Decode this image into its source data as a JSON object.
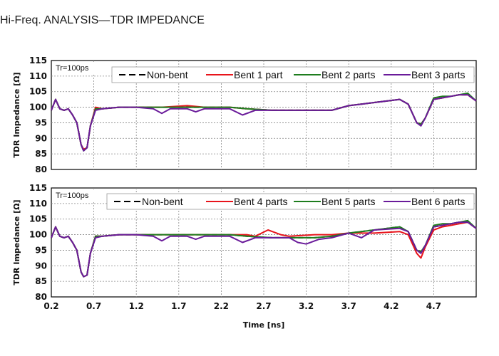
{
  "page": {
    "title": "Hi-Freq. ANALYSIS—TDR IMPEDANCE"
  },
  "chart_data": [
    {
      "type": "line",
      "condition_label": "Tr=100ps",
      "ylabel": "TDR Impedance [Ω]",
      "xlabel": "",
      "ylim": [
        80,
        115
      ],
      "yticks": [
        80,
        85,
        90,
        95,
        100,
        105,
        110,
        115
      ],
      "xlim": [
        0.2,
        5.2
      ],
      "xticks": [
        0.2,
        0.7,
        1.2,
        1.7,
        2.2,
        2.7,
        3.2,
        3.7,
        4.2,
        4.7
      ],
      "grid": true,
      "legend": "top",
      "series": [
        {
          "name": "Non-bent",
          "color": "#000000",
          "dash": true,
          "x": [
            0.2,
            0.25,
            0.3,
            0.35,
            0.4,
            0.45,
            0.5,
            0.55,
            0.58,
            0.62,
            0.66,
            0.72,
            0.8,
            1.0,
            1.2,
            1.5,
            1.8,
            2.0,
            2.3,
            2.5,
            2.8,
            3.0,
            3.3,
            3.5,
            3.7,
            4.0,
            4.3,
            4.4,
            4.5,
            4.55,
            4.6,
            4.7,
            4.8,
            4.9,
            5.0,
            5.1,
            5.2
          ],
          "y": [
            99,
            102.5,
            99.5,
            99,
            99.5,
            97.5,
            95,
            88,
            86,
            87,
            94,
            99.5,
            99.5,
            100,
            100,
            100,
            100,
            100,
            100,
            99.5,
            99,
            99,
            99,
            99,
            100.5,
            101.5,
            102.5,
            101,
            95,
            94.5,
            96.5,
            102.5,
            103,
            103.5,
            104,
            104,
            102
          ]
        },
        {
          "name": "Bent 1 part",
          "color": "#e8141b",
          "dash": false,
          "x": [
            0.2,
            0.25,
            0.3,
            0.35,
            0.4,
            0.45,
            0.5,
            0.55,
            0.58,
            0.62,
            0.66,
            0.72,
            0.8,
            1.0,
            1.2,
            1.5,
            1.8,
            2.0,
            2.3,
            2.5,
            2.8,
            3.0,
            3.3,
            3.5,
            3.7,
            4.0,
            4.3,
            4.4,
            4.5,
            4.55,
            4.6,
            4.7,
            4.8,
            4.9,
            5.0,
            5.1,
            5.2
          ],
          "y": [
            99,
            102.5,
            99.5,
            99,
            99.5,
            97.5,
            95,
            88,
            86.5,
            87,
            94,
            100,
            99.5,
            100,
            100,
            100,
            100.5,
            100,
            100,
            99.5,
            99,
            99,
            99,
            99,
            100.5,
            101.5,
            102.5,
            101,
            95,
            94.5,
            96.5,
            102.5,
            103,
            103.5,
            104,
            104,
            102
          ]
        },
        {
          "name": "Bent 2 parts",
          "color": "#1e7d1e",
          "dash": false,
          "x": [
            0.2,
            0.25,
            0.3,
            0.35,
            0.4,
            0.45,
            0.5,
            0.55,
            0.58,
            0.62,
            0.66,
            0.72,
            0.8,
            1.0,
            1.2,
            1.5,
            1.8,
            2.0,
            2.3,
            2.5,
            2.8,
            3.0,
            3.3,
            3.5,
            3.7,
            4.0,
            4.3,
            4.4,
            4.5,
            4.55,
            4.6,
            4.7,
            4.8,
            4.9,
            5.0,
            5.1,
            5.2
          ],
          "y": [
            99,
            102.5,
            99.5,
            99,
            99.5,
            97.5,
            95,
            88,
            86,
            87,
            94,
            99.5,
            99.5,
            100,
            100,
            100,
            100,
            100,
            100,
            99.5,
            99,
            99,
            99,
            99,
            100.5,
            101.5,
            102.5,
            101,
            95,
            94.5,
            96.5,
            103,
            103.5,
            103.5,
            104,
            104.5,
            102
          ]
        },
        {
          "name": "Bent 3 parts",
          "color": "#6a1b9a",
          "dash": false,
          "x": [
            0.2,
            0.25,
            0.3,
            0.35,
            0.4,
            0.45,
            0.5,
            0.55,
            0.58,
            0.62,
            0.66,
            0.72,
            0.8,
            1.0,
            1.2,
            1.4,
            1.5,
            1.6,
            1.8,
            1.9,
            2.0,
            2.3,
            2.45,
            2.6,
            2.8,
            3.0,
            3.3,
            3.5,
            3.7,
            4.0,
            4.3,
            4.4,
            4.5,
            4.55,
            4.6,
            4.7,
            4.8,
            4.9,
            5.0,
            5.1,
            5.2
          ],
          "y": [
            99,
            102.5,
            99.5,
            99,
            99.5,
            97.5,
            95,
            88,
            86,
            87,
            94,
            99,
            99.5,
            100,
            100,
            99.5,
            98,
            99.5,
            99.5,
            98.5,
            99.5,
            99.5,
            97.5,
            99,
            99,
            99,
            99,
            99,
            100.5,
            101.5,
            102.5,
            101,
            95,
            94,
            96.5,
            102.5,
            103,
            103.5,
            104,
            104,
            102
          ]
        }
      ]
    },
    {
      "type": "line",
      "condition_label": "Tr=100ps",
      "ylabel": "TDR Impedance [Ω]",
      "xlabel": "Time [ns]",
      "ylim": [
        80,
        115
      ],
      "yticks": [
        80,
        85,
        90,
        95,
        100,
        105,
        110,
        115
      ],
      "xlim": [
        0.2,
        5.2
      ],
      "xticks": [
        0.2,
        0.7,
        1.2,
        1.7,
        2.2,
        2.7,
        3.2,
        3.7,
        4.2,
        4.7
      ],
      "grid": true,
      "legend": "top",
      "series": [
        {
          "name": "Non-bent",
          "color": "#000000",
          "dash": true,
          "x": [
            0.2,
            0.25,
            0.3,
            0.35,
            0.4,
            0.45,
            0.5,
            0.55,
            0.58,
            0.62,
            0.66,
            0.72,
            0.8,
            1.0,
            1.2,
            1.5,
            1.8,
            2.0,
            2.3,
            2.5,
            2.8,
            3.0,
            3.3,
            3.5,
            3.7,
            4.0,
            4.3,
            4.4,
            4.5,
            4.55,
            4.6,
            4.7,
            4.8,
            4.9,
            5.0,
            5.1,
            5.2
          ],
          "y": [
            99,
            102.5,
            99.5,
            99,
            99.5,
            97.5,
            95,
            88,
            86.5,
            87,
            94,
            99.5,
            99.5,
            100,
            100,
            100,
            100,
            100,
            100,
            99.5,
            99,
            99,
            99,
            99.5,
            100.5,
            101.5,
            102.5,
            101,
            95,
            94.5,
            96.5,
            102.5,
            103,
            103.5,
            104,
            104,
            102
          ]
        },
        {
          "name": "Bent 4 parts",
          "color": "#e8141b",
          "dash": false,
          "x": [
            0.2,
            0.25,
            0.3,
            0.35,
            0.4,
            0.45,
            0.5,
            0.55,
            0.58,
            0.62,
            0.66,
            0.72,
            0.8,
            1.0,
            1.2,
            1.5,
            1.8,
            2.0,
            2.3,
            2.5,
            2.6,
            2.75,
            2.9,
            3.0,
            3.3,
            3.5,
            3.7,
            4.0,
            4.3,
            4.4,
            4.5,
            4.55,
            4.6,
            4.7,
            4.8,
            4.9,
            5.0,
            5.1,
            5.2
          ],
          "y": [
            99,
            102.5,
            99.5,
            99,
            99.5,
            97.5,
            95,
            88,
            86.5,
            87,
            94,
            99.5,
            99.5,
            100,
            100,
            100,
            100,
            100,
            100,
            100,
            99.5,
            101.5,
            100,
            99.5,
            100,
            100,
            100.5,
            100.5,
            101,
            100,
            94,
            92.5,
            96,
            101.5,
            102.5,
            103,
            103.5,
            104,
            102
          ]
        },
        {
          "name": "Bent 5 parts",
          "color": "#1e7d1e",
          "dash": false,
          "x": [
            0.2,
            0.25,
            0.3,
            0.35,
            0.4,
            0.45,
            0.5,
            0.55,
            0.58,
            0.62,
            0.66,
            0.72,
            0.8,
            1.0,
            1.2,
            1.5,
            1.8,
            2.0,
            2.3,
            2.5,
            2.8,
            3.0,
            3.3,
            3.5,
            3.7,
            4.0,
            4.3,
            4.4,
            4.5,
            4.55,
            4.6,
            4.7,
            4.8,
            4.9,
            5.0,
            5.1,
            5.2
          ],
          "y": [
            99,
            102.5,
            99.5,
            99,
            99.5,
            97.5,
            95,
            88,
            86.5,
            87,
            94,
            99.5,
            99.5,
            100,
            100,
            100,
            100,
            100,
            100,
            99.5,
            99,
            99,
            99,
            99.5,
            100.5,
            101.5,
            102.5,
            101,
            95,
            94.5,
            96.5,
            103,
            103.5,
            103.5,
            104,
            104.5,
            102
          ]
        },
        {
          "name": "Bent 6 parts",
          "color": "#6a1b9a",
          "dash": false,
          "x": [
            0.2,
            0.25,
            0.3,
            0.35,
            0.4,
            0.45,
            0.5,
            0.55,
            0.58,
            0.62,
            0.66,
            0.72,
            0.8,
            1.0,
            1.2,
            1.4,
            1.5,
            1.6,
            1.8,
            1.9,
            2.0,
            2.3,
            2.45,
            2.6,
            2.8,
            3.0,
            3.1,
            3.2,
            3.35,
            3.5,
            3.7,
            3.85,
            4.0,
            4.3,
            4.4,
            4.5,
            4.55,
            4.6,
            4.7,
            4.8,
            4.9,
            5.0,
            5.1,
            5.2
          ],
          "y": [
            99,
            102.5,
            99.5,
            99,
            99.5,
            97.5,
            95,
            88,
            86.5,
            87,
            94,
            99,
            99.5,
            100,
            100,
            99.5,
            98,
            99.5,
            99.5,
            98.5,
            99.5,
            99.5,
            97.5,
            99,
            99,
            99,
            97.5,
            97,
            98.5,
            99,
            100.5,
            99,
            101.5,
            102,
            101,
            95,
            94,
            96.5,
            102.5,
            103,
            103.5,
            104,
            104,
            102
          ]
        }
      ]
    }
  ]
}
